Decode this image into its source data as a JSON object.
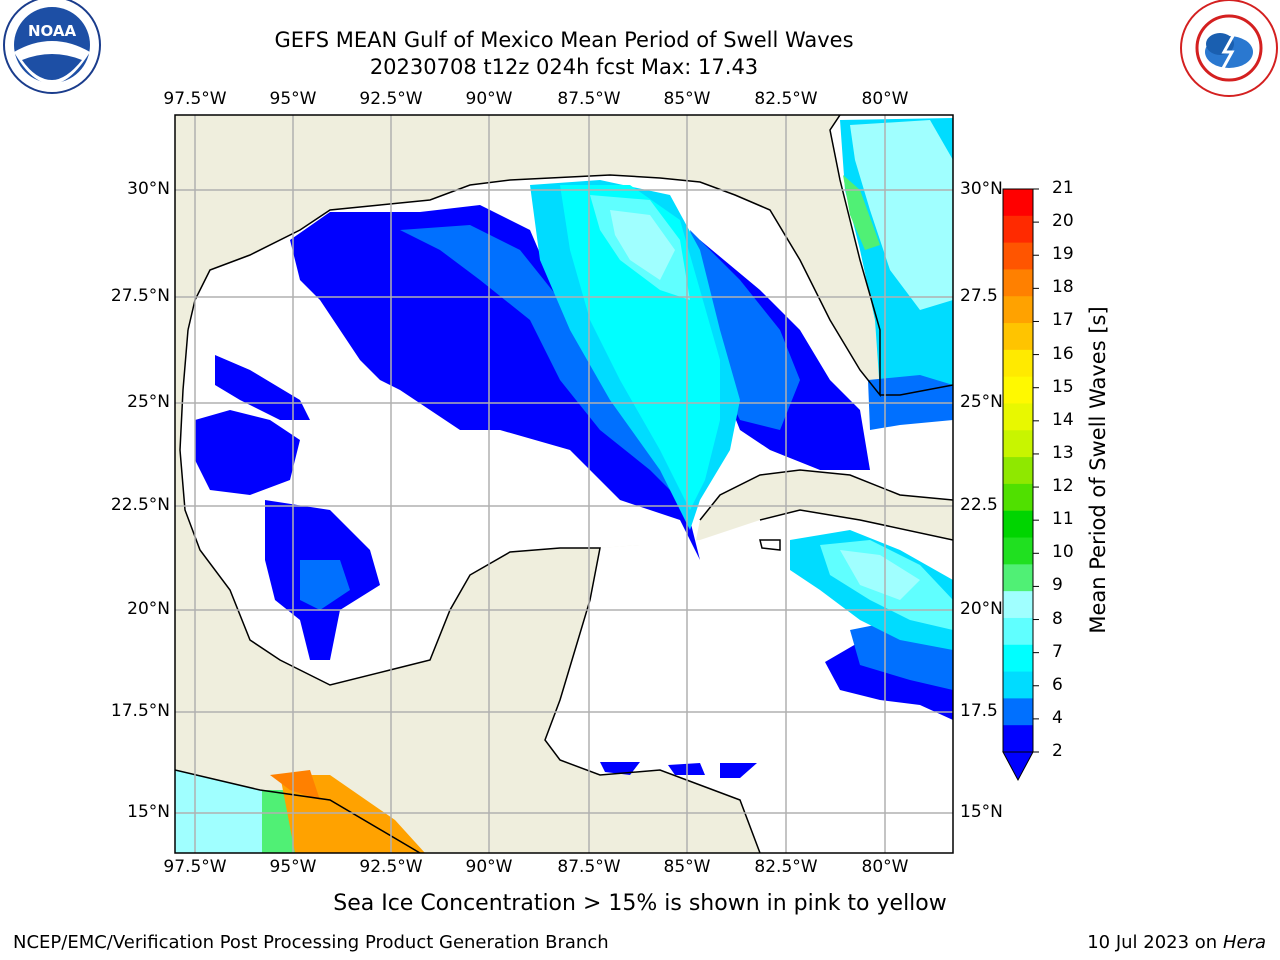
{
  "title_line1": "GEFS MEAN Gulf of Mexico Mean Period of Swell Waves",
  "title_line2": "20230708 t12z 024h fcst   Max: 17.43",
  "lon_ticks": [
    "97.5°W",
    "95°W",
    "92.5°W",
    "90°W",
    "87.5°W",
    "85°W",
    "82.5°W",
    "80°W"
  ],
  "lat_ticks_left": [
    "30°N",
    "27.5°N",
    "25°N",
    "22.5°N",
    "20°N",
    "17.5°N",
    "15°N"
  ],
  "lat_ticks_right": [
    "30°N",
    "27.5",
    "25°N",
    "22.5",
    "20°N",
    "17.5",
    "15°N"
  ],
  "colorbar": {
    "label": "Mean Period of Swell Waves [s]",
    "tick_labels": [
      "21",
      "20",
      "19",
      "18",
      "17",
      "16",
      "15",
      "14",
      "13",
      "12",
      "11",
      "10",
      "9",
      "8",
      "7",
      "6",
      "4",
      "2"
    ],
    "colors": [
      "#ff0000",
      "#ff2a00",
      "#ff5500",
      "#ff8000",
      "#ffa200",
      "#ffc400",
      "#ffea00",
      "#fff900",
      "#e8f800",
      "#c8f500",
      "#8fe800",
      "#50e000",
      "#00d500",
      "#20e020",
      "#50f075",
      "#a0ffff",
      "#60ffff",
      "#00ffff",
      "#00dcff",
      "#0070ff",
      "#0000ff"
    ]
  },
  "note": "Sea Ice Concentration > 15% is shown in pink to yellow",
  "footer_left": "NCEP/EMC/Verification Post Processing Product Generation Branch",
  "footer_right_date": "10 Jul 2023 on ",
  "footer_right_host": "Hera",
  "logos": {
    "left": "noaa-logo",
    "right": "nws-logo"
  }
}
